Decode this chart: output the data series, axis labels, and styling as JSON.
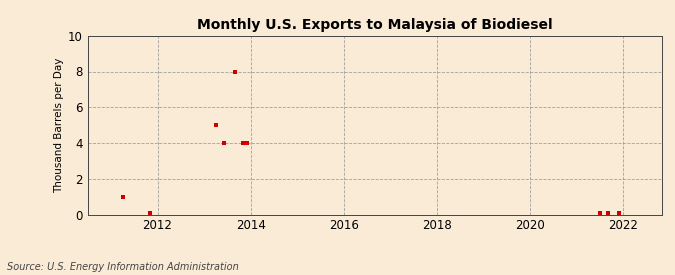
{
  "title": "Monthly U.S. Exports to Malaysia of Biodiesel",
  "ylabel": "Thousand Barrels per Day",
  "source": "Source: U.S. Energy Information Administration",
  "background_color": "#faebd7",
  "plot_background_color": "#faebd7",
  "marker_color": "#cc0000",
  "xlim_start": 2010.5,
  "xlim_end": 2022.83,
  "ylim": [
    0,
    10
  ],
  "yticks": [
    0,
    2,
    4,
    6,
    8,
    10
  ],
  "xticks": [
    2012,
    2014,
    2016,
    2018,
    2020,
    2022
  ],
  "data_points": [
    {
      "year": 2011.25,
      "value": 1.0
    },
    {
      "year": 2011.83,
      "value": 0.08
    },
    {
      "year": 2013.25,
      "value": 5.0
    },
    {
      "year": 2013.42,
      "value": 4.0
    },
    {
      "year": 2013.67,
      "value": 8.0
    },
    {
      "year": 2013.83,
      "value": 4.0
    },
    {
      "year": 2013.92,
      "value": 4.0
    },
    {
      "year": 2021.5,
      "value": 0.08
    },
    {
      "year": 2021.67,
      "value": 0.08
    },
    {
      "year": 2021.92,
      "value": 0.08
    }
  ]
}
